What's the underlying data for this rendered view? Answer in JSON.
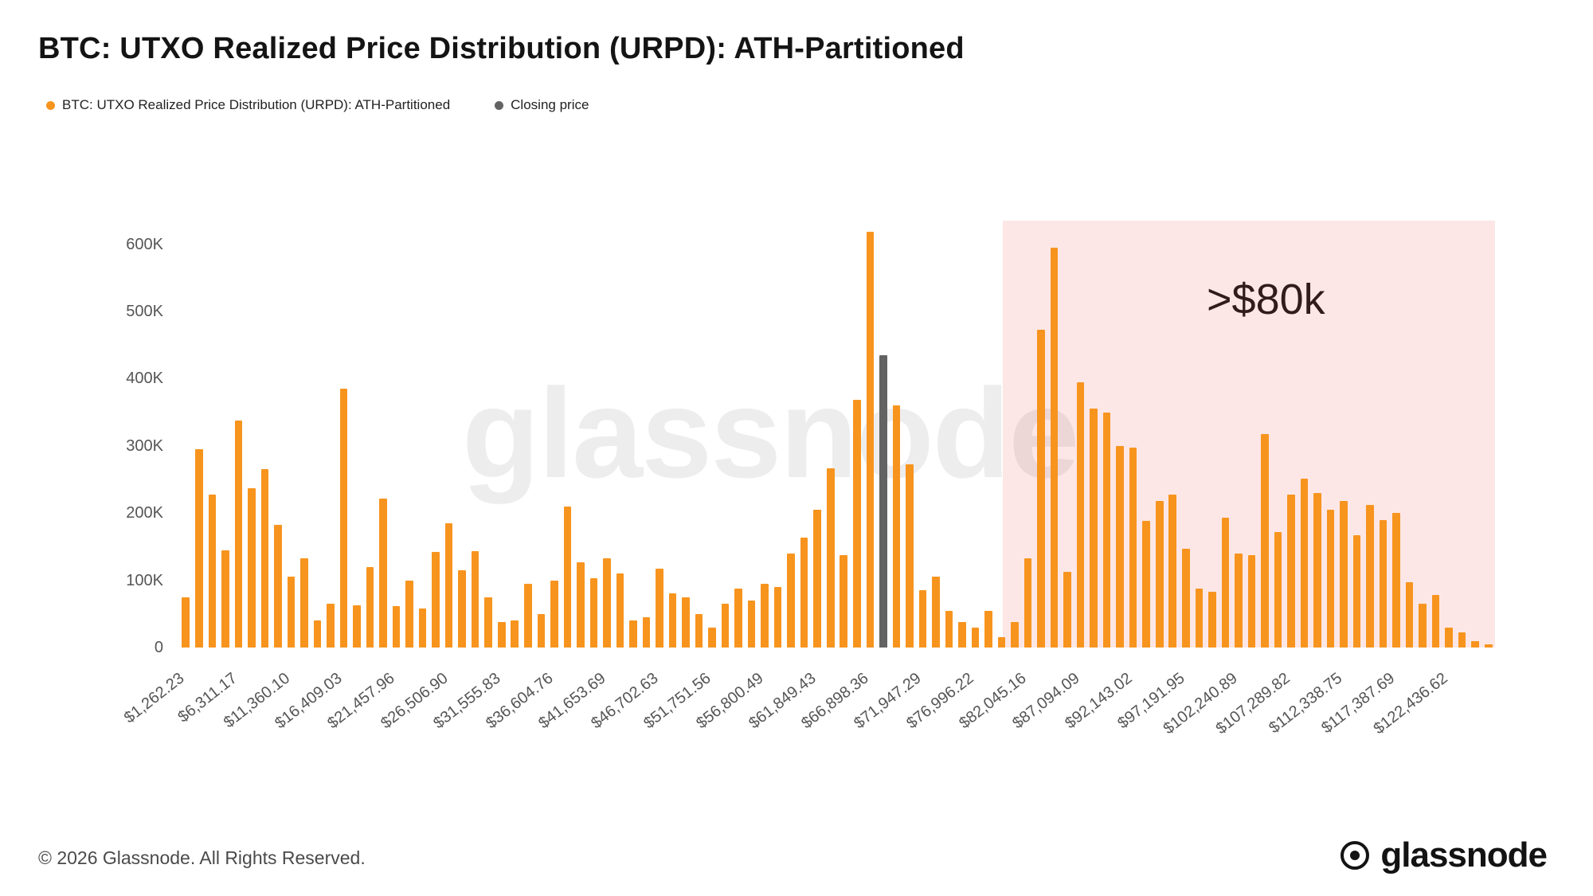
{
  "title": "BTC: UTXO Realized Price Distribution (URPD): ATH-Partitioned",
  "legend": [
    {
      "label": "BTC: UTXO Realized Price Distribution (URPD): ATH-Partitioned",
      "color": "#f7941e"
    },
    {
      "label": "Closing price",
      "color": "#636363"
    }
  ],
  "watermark": "glassnode",
  "footer": {
    "copyright": "© 2026 Glassnode. All Rights Reserved.",
    "brand": "glassnode"
  },
  "colors": {
    "bar": "#f7941e",
    "closing": "#636363",
    "highlight_bg": "rgba(238, 95, 85, 0.15)",
    "axis_text": "#555555"
  },
  "chart_data": {
    "type": "bar",
    "title": "BTC: UTXO Realized Price Distribution (URPD): ATH-Partitioned",
    "xlabel": "",
    "ylabel": "",
    "ylim": [
      0,
      635000
    ],
    "grid": false,
    "legend_position": "top-left",
    "yticks": [
      {
        "value": 0,
        "label": "0"
      },
      {
        "value": 100000,
        "label": "100K"
      },
      {
        "value": 200000,
        "label": "200K"
      },
      {
        "value": 300000,
        "label": "300K"
      },
      {
        "value": 400000,
        "label": "400K"
      },
      {
        "value": 500000,
        "label": "500K"
      },
      {
        "value": 600000,
        "label": "600K"
      }
    ],
    "x_tick_interval": 4,
    "x_tick_labels": [
      "$1,262.23",
      "$6,311.17",
      "$11,360.10",
      "$16,409.03",
      "$21,457.96",
      "$26,506.90",
      "$31,555.83",
      "$36,604.76",
      "$41,653.69",
      "$46,702.63",
      "$51,751.56",
      "$56,800.49",
      "$61,849.43",
      "$66,898.36",
      "$71,947.29",
      "$76,996.22",
      "$82,045.16",
      "$87,094.09",
      "$92,143.02",
      "$97,191.95",
      "$102,240.89",
      "$107,289.82",
      "$112,338.75",
      "$117,387.69",
      "$122,436.62"
    ],
    "series": [
      {
        "name": "BTC: UTXO Realized Price Distribution (URPD): ATH-Partitioned",
        "color": "#f7941e"
      },
      {
        "name": "Closing price",
        "color": "#636363"
      }
    ],
    "values": [
      75000,
      295000,
      228000,
      145000,
      338000,
      237000,
      265000,
      183000,
      105000,
      133000,
      40000,
      65000,
      385000,
      63000,
      120000,
      222000,
      62000,
      100000,
      58000,
      142000,
      185000,
      115000,
      143000,
      75000,
      38000,
      40000,
      95000,
      50000,
      100000,
      210000,
      127000,
      103000,
      133000,
      110000,
      40000,
      45000,
      117000,
      80000,
      75000,
      50000,
      30000,
      65000,
      88000,
      70000,
      95000,
      90000,
      140000,
      163000,
      205000,
      267000,
      137000,
      368000,
      618000,
      435000,
      360000,
      272000,
      85000,
      105000,
      55000,
      38000,
      30000,
      55000,
      15000,
      38000,
      133000,
      473000,
      595000,
      113000,
      395000,
      355000,
      350000,
      300000,
      297000,
      188000,
      218000,
      228000,
      147000,
      88000,
      83000,
      193000,
      140000,
      138000,
      317000,
      172000,
      228000,
      251000,
      230000,
      205000,
      218000,
      167000,
      212000,
      190000,
      200000,
      97000,
      65000,
      78000,
      30000,
      22000,
      10000,
      5000
    ],
    "closing_price_index": 53,
    "highlight": {
      "label": ">$80k",
      "start_price": 80000,
      "start_index": 63
    }
  }
}
